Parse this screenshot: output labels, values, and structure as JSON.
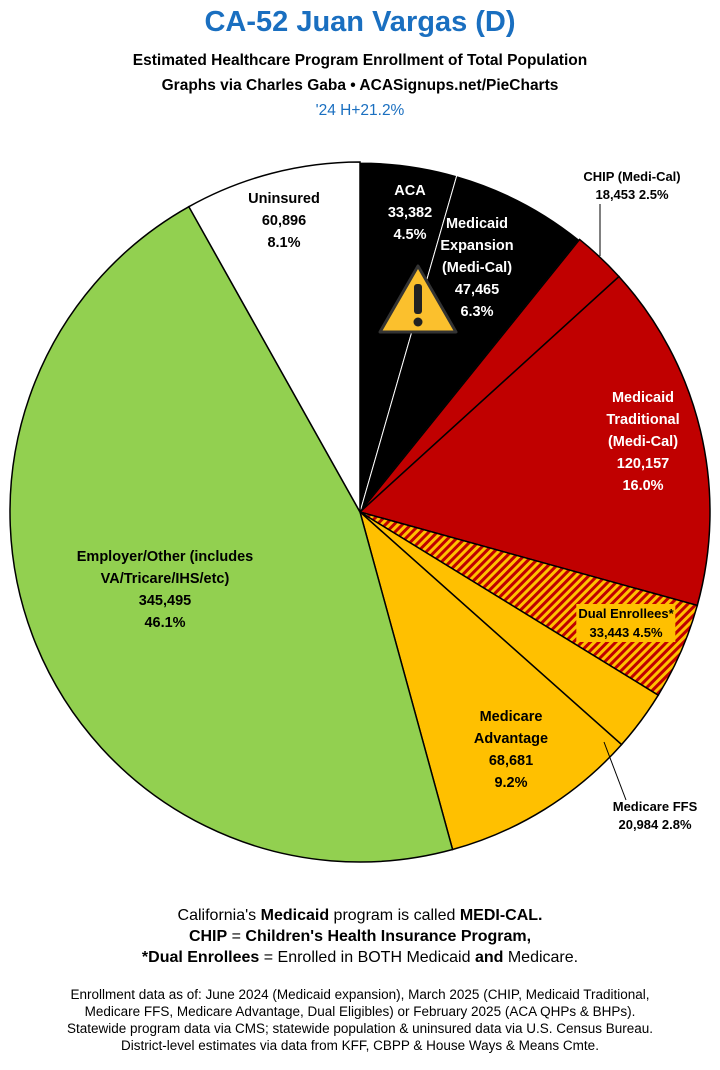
{
  "chart_data": {
    "type": "pie",
    "title": "CA-52 Juan Vargas (D)",
    "subtitle": [
      "Estimated Healthcare Program Enrollment of Total Population",
      "Graphs via Charles Gaba  •  ACASignups.net/PieCharts"
    ],
    "annotation": "'24 H+21.2%",
    "categories": [
      "ACA",
      "Medicaid Expansion (Medi-Cal)",
      "CHIP (Medi-Cal)",
      "Medicaid Traditional (Medi-Cal)",
      "Dual Enrollees*",
      "Medicare FFS",
      "Medicare Advantage",
      "Employer/Other (includes VA/Tricare/IHS/etc)",
      "Uninsured"
    ],
    "values": [
      33382,
      47465,
      18453,
      120157,
      33443,
      20984,
      68681,
      345495,
      60896
    ],
    "value_labels": [
      "33,382",
      "47,465",
      "18,453",
      "120,157",
      "33,443",
      "20,984",
      "68,681",
      "345,495",
      "60,896"
    ],
    "percents": [
      4.5,
      6.3,
      2.5,
      16.0,
      4.5,
      2.8,
      9.2,
      46.1,
      8.1
    ],
    "percent_labels": [
      "4.5%",
      "6.3%",
      "2.5%",
      "16.0%",
      "4.5%",
      "2.8%",
      "9.2%",
      "46.1%",
      "8.1%"
    ],
    "colors": [
      "#000000",
      "#000000",
      "#c00000",
      "#c00000",
      "#ffc000",
      "#ffc000",
      "#ffc000",
      "#92d050",
      "#ffffff"
    ],
    "hatched_slices": [
      "Dual Enrollees*"
    ],
    "hatch_color": "#c00000",
    "notes": [
      [
        {
          "text": "California's ",
          "bold": false
        },
        {
          "text": "Medicaid",
          "bold": true
        },
        {
          "text": " program is called ",
          "bold": false
        },
        {
          "text": "MEDI-CAL.",
          "bold": true
        }
      ],
      [
        {
          "text": "CHIP",
          "bold": true
        },
        {
          "text": " = ",
          "bold": false
        },
        {
          "text": "Children's Health Insurance Program,",
          "bold": true
        }
      ],
      [
        {
          "text": "*Dual Enrollees",
          "bold": true
        },
        {
          "text": " = Enrolled in BOTH Medicaid ",
          "bold": false
        },
        {
          "text": "and",
          "bold": true
        },
        {
          "text": " Medicare.",
          "bold": false
        }
      ]
    ],
    "footer": [
      "Enrollment data as of: June 2024 (Medicaid expansion), March 2025 (CHIP, Medicaid Traditional,",
      "Medicare FFS, Medicare Advantage, Dual Eligibles) or February 2025 (ACA QHPs & BHPs).",
      "Statewide program data via CMS; statewide population & uninsured data via U.S. Census Bureau.",
      "District-level estimates via data from KFF, CBPP & House Ways & Means Cmte."
    ]
  }
}
